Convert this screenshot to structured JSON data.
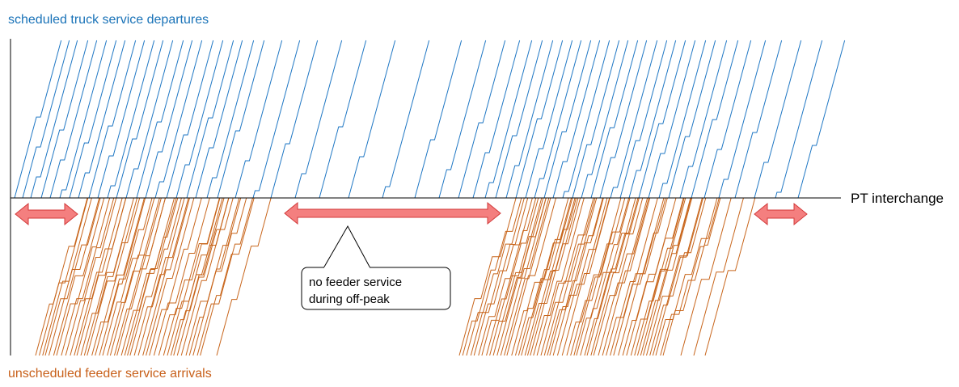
{
  "labels": {
    "top": "scheduled truck service departures",
    "bottom": "unscheduled feeder service arrivals",
    "axis": "PT interchange",
    "callout_line1": "no feeder service",
    "callout_line2": "during off-peak"
  },
  "colors": {
    "truck": "#1f77c4",
    "feeder": "#c8651b",
    "arrow_fill": "#f47f7f",
    "arrow_stroke": "#d23a3a",
    "axis": "#000000"
  }
}
